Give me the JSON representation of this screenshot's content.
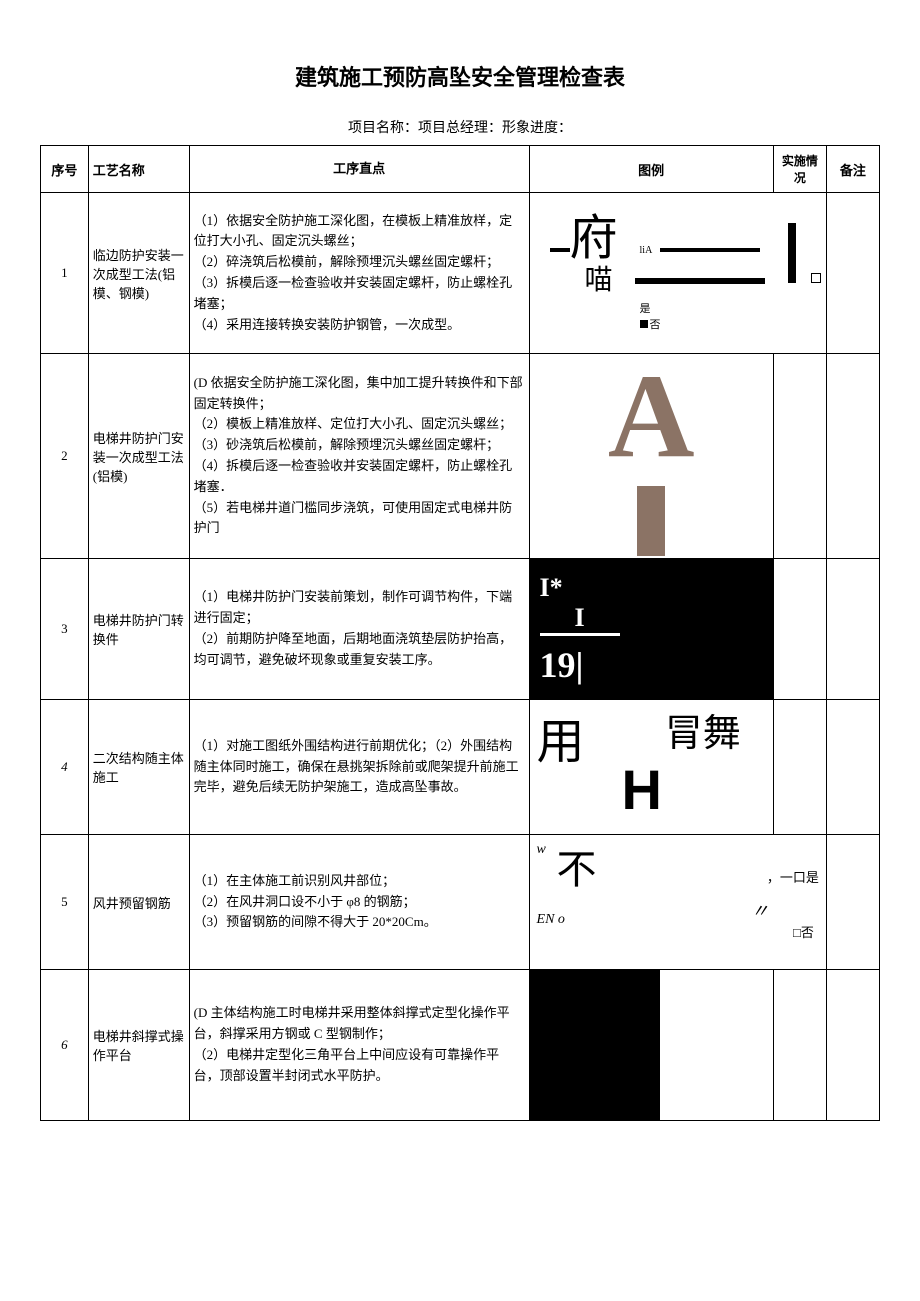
{
  "title": "建筑施工预防高坠安全管理检查表",
  "subtitle": "项目名称：项目总经理：形象进度：",
  "headers": {
    "num": "序号",
    "name": "工艺名称",
    "step": "工序直点",
    "img": "图例",
    "status": "实施情况",
    "note": "备注"
  },
  "rows": [
    {
      "num": "1",
      "name": "临边防护安装一次成型工法(铝模、钢模)",
      "step": "（1）依据安全防护施工深化图，在模板上精准放样，定位打大小孔、固定沉头螺丝；\n（2）碎浇筑后松模前，解除预埋沉头螺丝固定螺杆；\n（3）拆模后逐一检查验收并安装固定螺杆，防止螺栓孔堵塞；\n（4）采用连接转换安装防护钢管，一次成型。",
      "diagram": {
        "char1": "府",
        "char2": "喵",
        "liA": "liA",
        "yes": "是",
        "no": "否"
      }
    },
    {
      "num": "2",
      "name": "电梯井防护门安装一次成型工法(铝模)",
      "step": "(D 依据安全防护施工深化图，集中加工提升转换件和下部固定转换件；\n（2）模板上精准放样、定位打大小孔、固定沉头螺丝；\n（3）砂浇筑后松模前，解除预埋沉头螺丝固定螺杆；\n（4）拆模后逐一检查验收并安装固定螺杆，防止螺栓孔堵塞．\n（5）若电梯井道门槛同步浇筑，可使用固定式电梯井防护门",
      "diagram": {
        "letter": "A",
        "color": "#8b7365"
      }
    },
    {
      "num": "3",
      "name": "电梯井防护门转换件",
      "step": "（1）电梯井防护门安装前策划，制作可调节构件，下端进行固定；\n（2）前期防护降至地面，后期地面浇筑垫层防护抬高，均可调节，避免破坏现象或重复安装工序。",
      "diagram": {
        "line1": "I*",
        "line2": "I",
        "line3": "19|"
      }
    },
    {
      "num": "4",
      "num_italic": true,
      "name": "二次结构随主体施工",
      "step": "（1）对施工图纸外围结构进行前期优化；（2）外围结构随主体同时施工，确保在悬挑架拆除前或爬架提升前施工完毕，避免后续无防护架施工，造成高坠事故。",
      "diagram": {
        "char1": "用",
        "char2": "冐舞",
        "letter": "H"
      }
    },
    {
      "num": "5",
      "name": "风井预留钢筋",
      "step": "（1）在主体施工前识别风井部位；\n（2）在风井洞口设不小于 φ8 的钢筋；\n（3）预留钢筋的间隙不得大于 20*20Cm。",
      "diagram": {
        "w": "w",
        "bu": "不",
        "en": "EN o",
        "txt1": "，一口是",
        "quote": "〃",
        "txt2": "□否"
      }
    },
    {
      "num": "6",
      "num_italic": true,
      "name": "电梯井斜撑式操作平台",
      "step": "(D 主体结构施工时电梯井采用整体斜撑式定型化操作平台，斜撑采用方钢或 C 型钢制作；\n（2）电梯井定型化三角平台上中间应设有可靠操作平台，顶部设置半封闭式水平防护。",
      "diagram": {}
    }
  ]
}
